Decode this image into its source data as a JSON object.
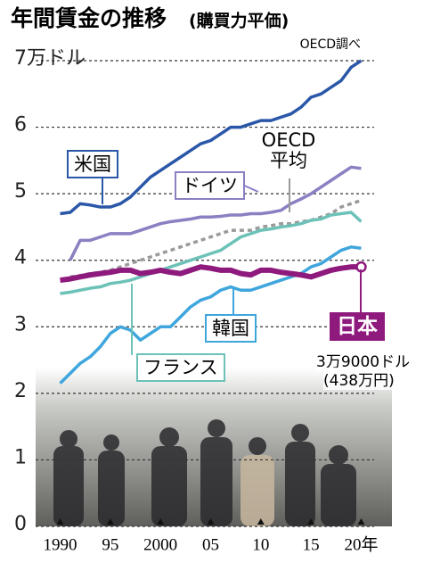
{
  "chart_data": {
    "type": "line",
    "title": "年間賃金の推移",
    "subtitle": "(購買力平価)",
    "source": "OECD調べ",
    "x": [
      1990,
      1991,
      1992,
      1993,
      1994,
      1995,
      1996,
      1997,
      1998,
      1999,
      2000,
      2001,
      2002,
      2003,
      2004,
      2005,
      2006,
      2007,
      2008,
      2009,
      2010,
      2011,
      2012,
      2013,
      2014,
      2015,
      2016,
      2017,
      2018,
      2019,
      2020
    ],
    "xlim": [
      1988,
      2022
    ],
    "xticks": [
      1990,
      {
        "value": 1995,
        "label": "95"
      },
      2000,
      {
        "value": 2005,
        "label": "05"
      },
      {
        "value": 2010,
        "label": "10"
      },
      {
        "value": 2015,
        "label": "15"
      },
      {
        "value": 2020,
        "label": "20年"
      }
    ],
    "ylim": [
      0,
      7
    ],
    "yticks": [
      {
        "value": 7,
        "label": "7万ドル"
      },
      6,
      5,
      4,
      3,
      2,
      1,
      0
    ],
    "grid": true,
    "series": [
      {
        "name": "米国",
        "color": "#2b57a8",
        "values": [
          4.7,
          4.72,
          4.85,
          4.83,
          4.8,
          4.8,
          4.85,
          4.95,
          5.1,
          5.25,
          5.35,
          5.45,
          5.55,
          5.65,
          5.75,
          5.8,
          5.9,
          6.0,
          6.0,
          6.05,
          6.1,
          6.1,
          6.15,
          6.2,
          6.3,
          6.45,
          6.5,
          6.6,
          6.7,
          6.9,
          7.0
        ]
      },
      {
        "name": "ドイツ",
        "color": "#8a80c2",
        "values": [
          null,
          4.0,
          4.3,
          4.3,
          4.35,
          4.4,
          4.4,
          4.4,
          4.45,
          4.5,
          4.55,
          4.58,
          4.6,
          4.62,
          4.65,
          4.65,
          4.66,
          4.68,
          4.68,
          4.7,
          4.7,
          4.72,
          4.75,
          4.85,
          4.92,
          5.0,
          5.1,
          5.2,
          5.3,
          5.4,
          5.38
        ]
      },
      {
        "name": "OECD平均",
        "color": "#9a9a9a",
        "dashed": true,
        "values": [
          null,
          3.75,
          3.77,
          3.8,
          3.82,
          3.85,
          3.9,
          3.95,
          4.0,
          4.05,
          4.1,
          4.15,
          4.2,
          4.25,
          4.3,
          4.35,
          4.4,
          4.45,
          4.45,
          4.45,
          4.5,
          4.52,
          4.55,
          4.55,
          4.58,
          4.6,
          4.65,
          4.7,
          4.8,
          4.85,
          4.9
        ]
      },
      {
        "name": "フランス",
        "color": "#6cc2b8",
        "values": [
          3.5,
          3.52,
          3.55,
          3.58,
          3.6,
          3.65,
          3.67,
          3.7,
          3.75,
          3.8,
          3.85,
          3.9,
          3.95,
          4.0,
          4.05,
          4.1,
          4.15,
          4.25,
          4.35,
          4.4,
          4.45,
          4.47,
          4.5,
          4.52,
          4.55,
          4.6,
          4.62,
          4.68,
          4.7,
          4.72,
          4.58
        ]
      },
      {
        "name": "韓国",
        "color": "#3fa6dd",
        "values": [
          2.15,
          2.3,
          2.45,
          2.55,
          2.7,
          2.9,
          3.0,
          2.95,
          2.8,
          2.9,
          3.0,
          3.0,
          3.15,
          3.3,
          3.4,
          3.45,
          3.55,
          3.6,
          3.55,
          3.55,
          3.6,
          3.65,
          3.7,
          3.75,
          3.8,
          3.9,
          3.95,
          4.05,
          4.15,
          4.2,
          4.18
        ]
      },
      {
        "name": "日本",
        "color": "#8e1a7e",
        "bold": true,
        "values": [
          3.7,
          3.72,
          3.75,
          3.78,
          3.8,
          3.82,
          3.85,
          3.85,
          3.8,
          3.82,
          3.85,
          3.82,
          3.8,
          3.85,
          3.9,
          3.88,
          3.85,
          3.85,
          3.8,
          3.78,
          3.85,
          3.85,
          3.82,
          3.8,
          3.78,
          3.75,
          3.8,
          3.85,
          3.88,
          3.9,
          3.9
        ],
        "value_labels_note_lines": [
          "3万9000ドル",
          "(438万円)"
        ]
      }
    ]
  }
}
